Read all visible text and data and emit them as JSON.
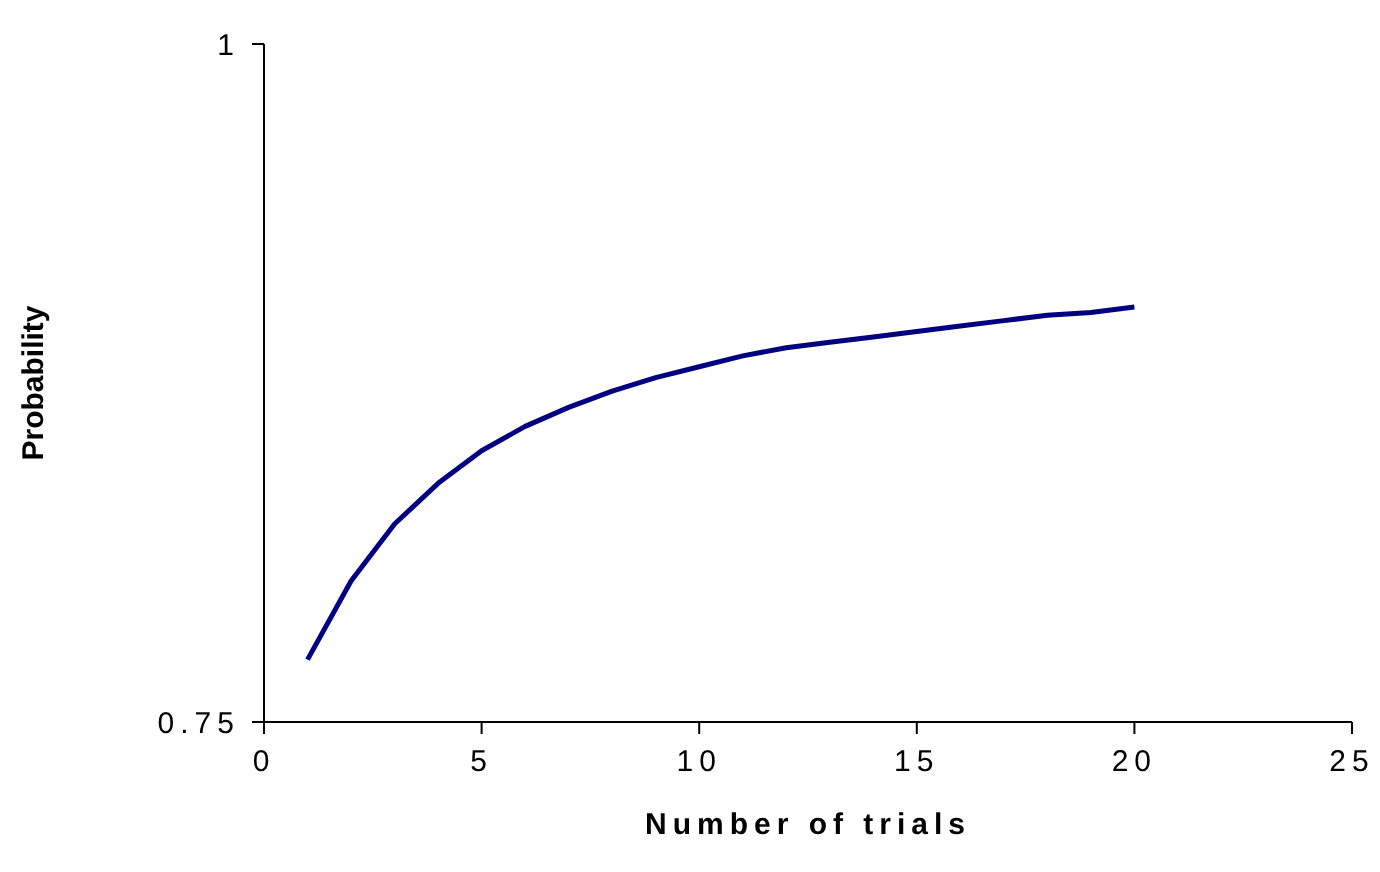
{
  "chart_data": {
    "type": "line",
    "xlabel": "Number of trials",
    "ylabel": "Probability",
    "x": [
      1,
      2,
      3,
      4,
      5,
      6,
      7,
      8,
      9,
      10,
      11,
      12,
      13,
      14,
      15,
      16,
      17,
      18,
      19,
      20
    ],
    "series": [
      {
        "color": "#000080",
        "values": [
          0.773,
          0.802,
          0.823,
          0.838,
          0.85,
          0.859,
          0.866,
          0.872,
          0.877,
          0.881,
          0.885,
          0.888,
          0.89,
          0.892,
          0.894,
          0.896,
          0.898,
          0.9,
          0.901,
          0.903
        ]
      }
    ],
    "xlim": [
      0,
      25
    ],
    "xticks": [
      0,
      5,
      10,
      15,
      20,
      25
    ],
    "ylim": [
      0.75,
      1
    ],
    "yticks": [
      0.75,
      1
    ],
    "grid": false,
    "legend": false,
    "marker": "none",
    "line_style": "solid"
  }
}
